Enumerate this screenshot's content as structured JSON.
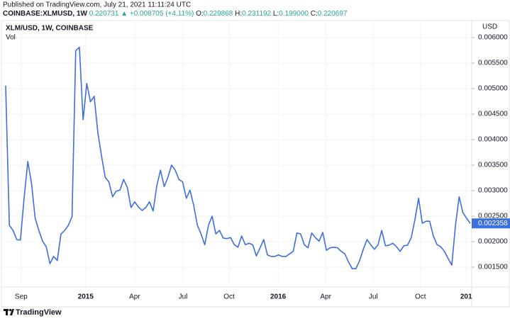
{
  "header": {
    "published": "Published on TradingView.com, July 21, 2021 11:11:24 UTC",
    "symbol": "COINBASE:XLMUSD, 1W",
    "price": "0.220731",
    "change": "▲ +0.008705 (+4.11%)",
    "ohlc": [
      {
        "label": "O:",
        "value": "0.229868"
      },
      {
        "label": "H:",
        "value": "0.231192"
      },
      {
        "label": "L:",
        "value": "0.199000"
      },
      {
        "label": "C:",
        "value": "0.220697"
      }
    ]
  },
  "chart_data": {
    "type": "line",
    "sublegend": "Vol",
    "axis_unit": "USD",
    "grid": true,
    "series": [
      {
        "name": "XLM/USD, 1W, COINBASE",
        "color": "#3d6ee0",
        "values": [
          0.005056,
          0.00232,
          0.00222,
          0.00204,
          0.00203,
          0.00285,
          0.00357,
          0.00315,
          0.00246,
          0.00222,
          0.00201,
          0.0019,
          0.00157,
          0.00171,
          0.00163,
          0.00215,
          0.00222,
          0.00232,
          0.00249,
          0.00574,
          0.00581,
          0.00439,
          0.0051,
          0.00474,
          0.00485,
          0.00414,
          0.00368,
          0.00326,
          0.00317,
          0.00288,
          0.00299,
          0.00301,
          0.00322,
          0.00306,
          0.00267,
          0.00278,
          0.00268,
          0.00261,
          0.00267,
          0.00278,
          0.0026,
          0.0031,
          0.0034,
          0.00308,
          0.00326,
          0.0035,
          0.0034,
          0.00322,
          0.00317,
          0.00285,
          0.00301,
          0.00271,
          0.00232,
          0.00215,
          0.00194,
          0.00232,
          0.0025,
          0.00215,
          0.00222,
          0.00207,
          0.00206,
          0.00208,
          0.00194,
          0.00189,
          0.00211,
          0.00194,
          0.00197,
          0.00194,
          0.00172,
          0.00188,
          0.00204,
          0.00174,
          0.00171,
          0.00171,
          0.00174,
          0.00171,
          0.00171,
          0.00176,
          0.00181,
          0.00217,
          0.00215,
          0.00194,
          0.00188,
          0.00217,
          0.00208,
          0.00201,
          0.00218,
          0.00183,
          0.00188,
          0.00189,
          0.00188,
          0.00181,
          0.00176,
          0.0016,
          0.00147,
          0.00147,
          0.00163,
          0.00185,
          0.00204,
          0.00194,
          0.00185,
          0.00194,
          0.00222,
          0.00192,
          0.00193,
          0.00197,
          0.0019,
          0.00181,
          0.00192,
          0.00193,
          0.00208,
          0.00243,
          0.00285,
          0.00236,
          0.0024,
          0.0024,
          0.00211,
          0.00194,
          0.0019,
          0.00181,
          0.00167,
          0.00154,
          0.00232,
          0.00288,
          0.00257,
          0.00246,
          0.002358
        ]
      }
    ],
    "xlim": [
      -0.96,
      126.4
    ],
    "xticks": [
      {
        "value": 4.2,
        "label": "Sep"
      },
      {
        "value": 21.7,
        "label": "2015"
      },
      {
        "value": 35.0,
        "label": "Apr"
      },
      {
        "value": 48.1,
        "label": "Jul"
      },
      {
        "value": 60.6,
        "label": "Oct"
      },
      {
        "value": 73.9,
        "label": "2016"
      },
      {
        "value": 86.8,
        "label": "Apr"
      },
      {
        "value": 99.7,
        "label": "Jul"
      },
      {
        "value": 112.5,
        "label": "Oct"
      },
      {
        "value": 124.9,
        "label": "201"
      }
    ],
    "ylim": [
      0.001181,
      0.006319
    ],
    "yticks": [
      {
        "value": 0.0015,
        "label": "0.001500"
      },
      {
        "value": 0.002,
        "label": "0.002000"
      },
      {
        "value": 0.0025,
        "label": "0.002500"
      },
      {
        "value": 0.003,
        "label": "0.003000"
      },
      {
        "value": 0.0035,
        "label": "0.003500"
      },
      {
        "value": 0.004,
        "label": "0.004000"
      },
      {
        "value": 0.0045,
        "label": "0.004500"
      },
      {
        "value": 0.005,
        "label": "0.005000"
      },
      {
        "value": 0.0055,
        "label": "0.005500"
      },
      {
        "value": 0.006,
        "label": "0.006000"
      }
    ]
  },
  "footer": {
    "brand": "TradingView"
  }
}
